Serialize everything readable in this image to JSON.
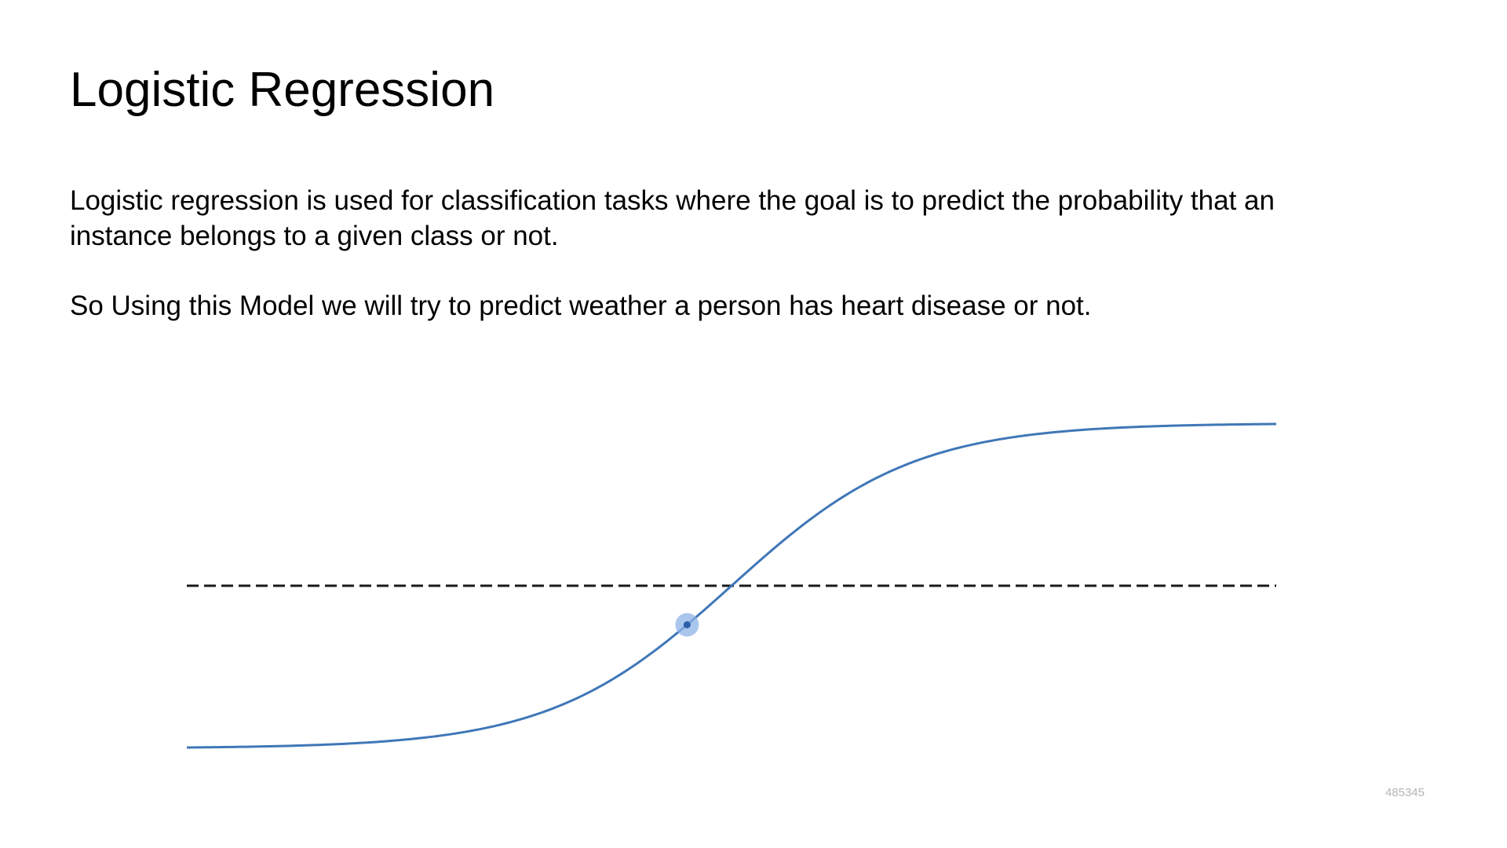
{
  "slide": {
    "title": "Logistic Regression",
    "paragraph_1_line_1": "Logistic regression is used for classification tasks where the goal is to predict the probability that an",
    "paragraph_1_line_2": "instance belongs to a given class or not.",
    "paragraph_2": "So Using this Model we will try to predict weather a person has heart disease or not.",
    "slide_id": "485345"
  },
  "colors": {
    "curve": "#3f77b8",
    "threshold": "#1a1a1a",
    "cursor_highlight": "#8fb3e6",
    "cursor_dot": "#2c5fa8"
  },
  "chart_data": {
    "type": "line",
    "title": "",
    "xlabel": "",
    "ylabel": "",
    "function": "sigmoid",
    "xlim": [
      -6,
      6
    ],
    "ylim": [
      0,
      1
    ],
    "series": [
      {
        "values_x": [
          -6,
          -5,
          -4,
          -3,
          -2,
          -1,
          0,
          1,
          2,
          3,
          4,
          5,
          6
        ],
        "values_y": [
          0.0025,
          0.0067,
          0.018,
          0.047,
          0.119,
          0.269,
          0.5,
          0.731,
          0.881,
          0.953,
          0.982,
          0.9933,
          0.9975
        ]
      }
    ],
    "threshold": 0.5,
    "threshold_style": "dashed",
    "grid": false,
    "axes_visible": false,
    "highlight_point_y": 0.38
  }
}
